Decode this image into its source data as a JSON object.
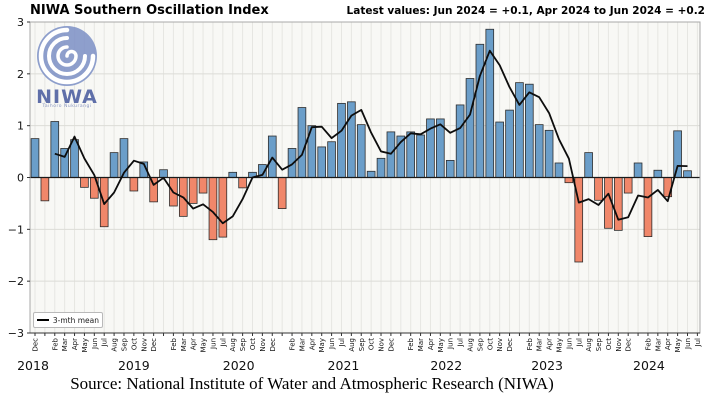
{
  "header": {
    "title": "NIWA Southern Oscillation Index",
    "latest_values": "Latest values: Jun 2024 = +0.1, Apr 2024 to Jun 2024 = +0.2"
  },
  "logo": {
    "name": "NIWA",
    "tagline": "Taihoro Nukurangi",
    "icon": "koru-swirl-icon"
  },
  "legend": {
    "mean_label": "3-mth mean"
  },
  "source": "Source: National Institute of Water and Atmospheric Research (NIWA)",
  "colors": {
    "positive_bar": "#6b9ec9",
    "negative_bar": "#f0876a",
    "bar_edge": "#2e2e2e",
    "mean_line": "#0d0d0d",
    "grid": "#e6e6e2",
    "plot_bg": "#f8f8f5",
    "spine": "#a8a8a8",
    "axis_zero": "#1a1a1a",
    "logo_blue": "#7e92c6",
    "logo_text": "#5f6fa9"
  },
  "chart_data": {
    "type": "bar",
    "title": "NIWA Southern Oscillation Index",
    "xlabel": "",
    "ylabel": "",
    "ylim": [
      -3,
      3
    ],
    "yticks": [
      3,
      2,
      1,
      0,
      -1,
      -2,
      -3
    ],
    "grid": true,
    "legend_position": "lower left",
    "series_note": "Monthly SOI bars Dec 2018 - Jun 2024; black line = 3-month running mean; Jul 2024 tick present but no bar yet",
    "categories": [
      "Dec 2018",
      "Jan 2019",
      "Feb 2019",
      "Mar 2019",
      "Apr 2019",
      "May 2019",
      "Jun 2019",
      "Jul 2019",
      "Aug 2019",
      "Sep 2019",
      "Oct 2019",
      "Nov 2019",
      "Dec 2019",
      "Jan 2020",
      "Feb 2020",
      "Mar 2020",
      "Apr 2020",
      "May 2020",
      "Jun 2020",
      "Jul 2020",
      "Aug 2020",
      "Sep 2020",
      "Oct 2020",
      "Nov 2020",
      "Dec 2020",
      "Jan 2021",
      "Feb 2021",
      "Mar 2021",
      "Apr 2021",
      "May 2021",
      "Jun 2021",
      "Jul 2021",
      "Aug 2021",
      "Sep 2021",
      "Oct 2021",
      "Nov 2021",
      "Dec 2021",
      "Jan 2022",
      "Feb 2022",
      "Mar 2022",
      "Apr 2022",
      "May 2022",
      "Jun 2022",
      "Jul 2022",
      "Aug 2022",
      "Sep 2022",
      "Oct 2022",
      "Nov 2022",
      "Dec 2022",
      "Jan 2023",
      "Feb 2023",
      "Mar 2023",
      "Apr 2023",
      "May 2023",
      "Jun 2023",
      "Jul 2023",
      "Aug 2023",
      "Sep 2023",
      "Oct 2023",
      "Nov 2023",
      "Dec 2023",
      "Jan 2024",
      "Feb 2024",
      "Mar 2024",
      "Apr 2024",
      "May 2024",
      "Jun 2024",
      "Jul 2024"
    ],
    "values": [
      0.75,
      -0.45,
      1.08,
      0.56,
      0.73,
      -0.19,
      -0.4,
      -0.95,
      0.48,
      0.75,
      -0.26,
      0.3,
      -0.47,
      0.15,
      -0.55,
      -0.75,
      -0.5,
      -0.3,
      -1.2,
      -1.15,
      0.1,
      -0.2,
      0.1,
      0.25,
      0.8,
      -0.6,
      0.56,
      1.35,
      1.0,
      0.59,
      0.69,
      1.43,
      1.46,
      1.02,
      0.12,
      0.37,
      0.88,
      0.8,
      0.88,
      0.82,
      1.13,
      1.13,
      0.33,
      1.4,
      1.91,
      2.57,
      2.86,
      1.07,
      1.3,
      1.83,
      1.8,
      1.02,
      0.91,
      0.28,
      -0.1,
      -1.63,
      0.48,
      -0.44,
      -0.98,
      -1.02,
      -0.3,
      0.28,
      -1.14,
      0.14,
      -0.37,
      0.9,
      0.13,
      null
    ],
    "mean_line": "trailing 3-month mean computed from values",
    "hidden_month_labels": "Jan",
    "year_labels": [
      {
        "label": "2018",
        "index": -0.2
      },
      {
        "label": "2019",
        "index": 10.0
      },
      {
        "label": "2020",
        "index": 20.6
      },
      {
        "label": "2021",
        "index": 31.2
      },
      {
        "label": "2022",
        "index": 41.6
      },
      {
        "label": "2023",
        "index": 51.8
      },
      {
        "label": "2024",
        "index": 62.1
      }
    ]
  }
}
